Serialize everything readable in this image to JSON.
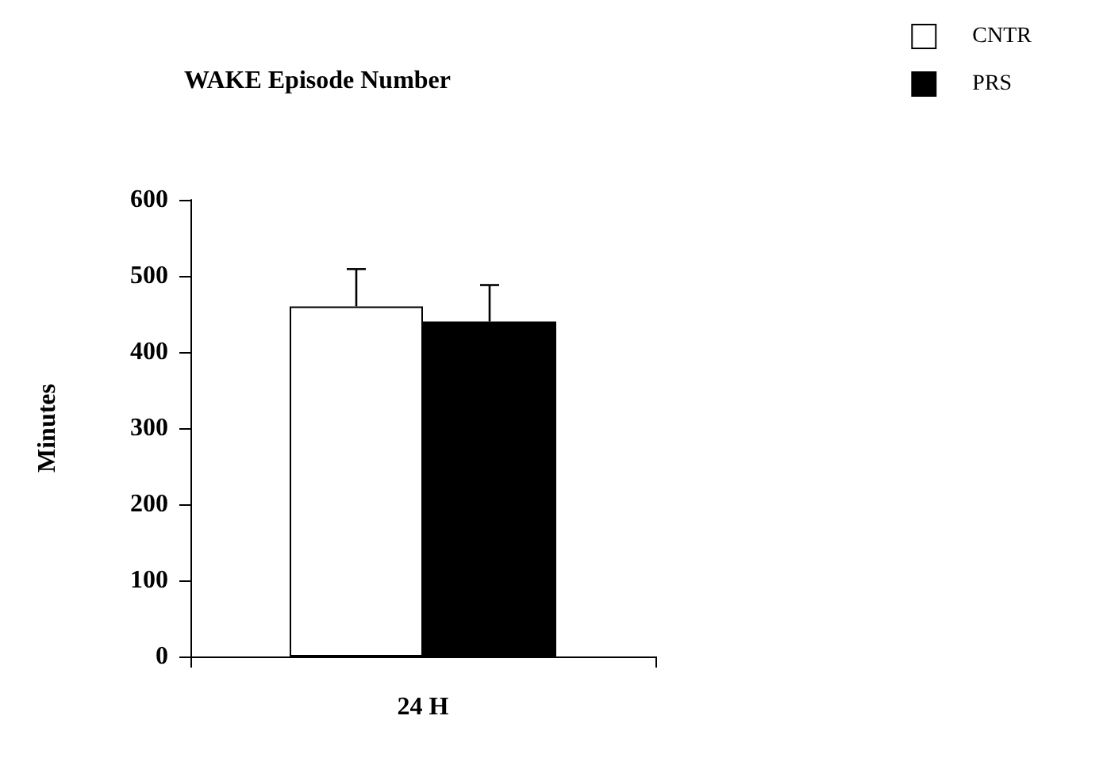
{
  "chart_data": {
    "type": "bar",
    "title": "WAKE Episode Number",
    "ylabel": "Minutes",
    "categories": [
      "24 H"
    ],
    "series": [
      {
        "name": "CNTR",
        "color": "#ffffff",
        "values": [
          460
        ],
        "errors": [
          [
            460,
            509
          ]
        ]
      },
      {
        "name": "PRS",
        "color": "#000000",
        "values": [
          440
        ],
        "errors": [
          [
            440,
            488
          ]
        ]
      }
    ],
    "ylim": [
      0,
      600
    ],
    "yticks": [
      0,
      100,
      200,
      300,
      400,
      500,
      600
    ],
    "grid": false,
    "legend": "top right"
  }
}
